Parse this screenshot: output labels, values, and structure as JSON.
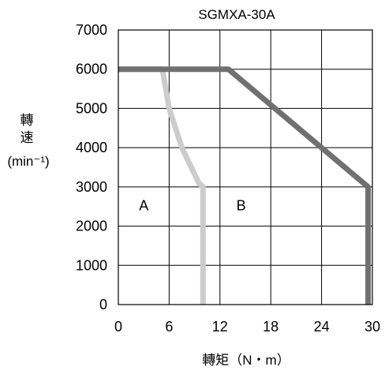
{
  "chart_data": {
    "type": "line",
    "title": "SGMXA-30A",
    "xlabel": "轉矩（N・m）",
    "ylabel": {
      "line1": "轉",
      "line2": "速",
      "line3": "(min⁻¹)"
    },
    "xlim": [
      0,
      30
    ],
    "ylim": [
      0,
      7000
    ],
    "x_ticks": [
      "0",
      "6",
      "12",
      "18",
      "24",
      "30"
    ],
    "y_ticks": [
      "0",
      "1000",
      "2000",
      "3000",
      "4000",
      "5000",
      "6000",
      "7000"
    ],
    "grid": true,
    "regions": [
      {
        "label": "A",
        "x": 3,
        "y": 2400
      },
      {
        "label": "B",
        "x": 14.5,
        "y": 2400
      }
    ],
    "series": [
      {
        "color": "#cccccc",
        "points": [
          [
            0,
            6000
          ],
          [
            5.2,
            6000
          ],
          [
            6,
            5000
          ],
          [
            7.5,
            4000
          ],
          [
            9.5,
            3100
          ],
          [
            10,
            3000
          ],
          [
            10,
            0
          ]
        ]
      },
      {
        "color": "#707070",
        "points": [
          [
            0,
            6000
          ],
          [
            13,
            6000
          ],
          [
            29.5,
            3000
          ],
          [
            29.5,
            0
          ]
        ]
      }
    ]
  }
}
